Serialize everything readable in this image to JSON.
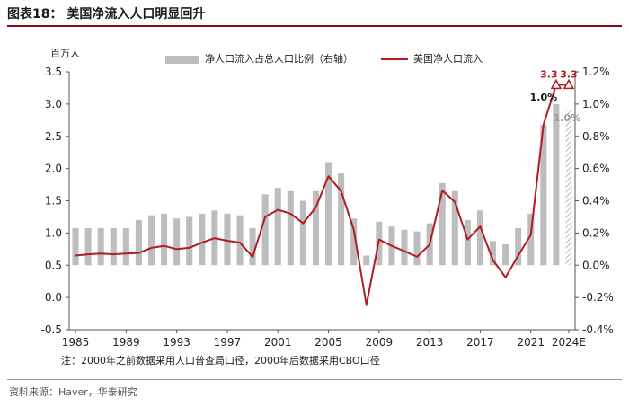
{
  "header": {
    "title": "图表18： 美国净流入人口明显回升",
    "unit": "百万人"
  },
  "footer": {
    "note": "注：2000年之前数据采用人口普查局口径，2000年后数据采用CBO口径",
    "source": "资料来源：Haver，华泰研究"
  },
  "colors": {
    "bar": "#bdbdbd",
    "line": "#b01c22",
    "annotation": "#b01c22",
    "grey_label": "#9e9e9e"
  },
  "chart_data": {
    "type": "bar+line",
    "x": [
      1985,
      1986,
      1987,
      1988,
      1989,
      1990,
      1991,
      1992,
      1993,
      1994,
      1995,
      1996,
      1997,
      1998,
      1999,
      2000,
      2001,
      2002,
      2003,
      2004,
      2005,
      2006,
      2007,
      2008,
      2009,
      2010,
      2011,
      2012,
      2013,
      2014,
      2015,
      2016,
      2017,
      2018,
      2019,
      2020,
      2021,
      2022,
      2023,
      "2024E"
    ],
    "x_tick_labels": [
      "1985",
      "1989",
      "1993",
      "1997",
      "2001",
      "2005",
      "2009",
      "2013",
      "2017",
      "2021",
      "2024E"
    ],
    "x_tick_years": [
      1985,
      1989,
      1993,
      1997,
      2001,
      2005,
      2009,
      2013,
      2017,
      2021,
      2024
    ],
    "series": [
      {
        "name": "净人口流入占总人口比例（右轴）",
        "type": "bar",
        "axis": "right",
        "values": [
          0.23,
          0.23,
          0.23,
          0.23,
          0.23,
          0.28,
          0.31,
          0.32,
          0.29,
          0.3,
          0.32,
          0.34,
          0.32,
          0.31,
          0.23,
          0.44,
          0.48,
          0.46,
          0.4,
          0.46,
          0.64,
          0.57,
          0.29,
          0.06,
          0.27,
          0.24,
          0.22,
          0.21,
          0.26,
          0.51,
          0.46,
          0.28,
          0.34,
          0.15,
          0.13,
          0.23,
          0.32,
          0.87,
          1.0,
          0.96
        ],
        "hatched_index": 39
      },
      {
        "name": "美国净人口流入",
        "type": "line",
        "axis": "left",
        "values": [
          0.65,
          0.67,
          0.68,
          0.67,
          0.68,
          0.69,
          0.77,
          0.8,
          0.75,
          0.77,
          0.85,
          0.92,
          0.88,
          0.85,
          0.63,
          1.25,
          1.36,
          1.3,
          1.15,
          1.4,
          1.88,
          1.65,
          1.05,
          -0.12,
          0.9,
          0.8,
          0.72,
          0.63,
          0.82,
          1.66,
          1.48,
          0.9,
          1.1,
          0.58,
          0.31,
          0.65,
          0.97,
          2.68,
          3.3,
          3.3
        ]
      }
    ],
    "annotations": [
      {
        "text": "3.3",
        "x": 2023,
        "y": 3.3,
        "marker": "triangle",
        "color": "#b01c22"
      },
      {
        "text": "3.3",
        "x": 2024,
        "y": 3.3,
        "marker": "triangle",
        "color": "#b01c22"
      },
      {
        "text": "1.0%",
        "x": 2023,
        "y_right": 1.0,
        "color": "#111111"
      },
      {
        "text": "1.0%",
        "x": 2024,
        "y_right": 0.96,
        "color": "#9e9e9e"
      }
    ],
    "ylim_left": [
      -0.5,
      3.5
    ],
    "yticks_left": [
      "3.5",
      "3.0",
      "2.5",
      "2.0",
      "1.5",
      "1.0",
      "0.5",
      "0.0",
      "-0.5"
    ],
    "yticks_left_values": [
      3.5,
      3.0,
      2.5,
      2.0,
      1.5,
      1.0,
      0.5,
      0.0,
      -0.5
    ],
    "ylim_right": [
      -0.4,
      1.2
    ],
    "yticks_right": [
      "1.2%",
      "1.0%",
      "0.8%",
      "0.6%",
      "0.4%",
      "0.2%",
      "0.0%",
      "-0.2%",
      "-0.4%"
    ],
    "yticks_right_values": [
      1.2,
      1.0,
      0.8,
      0.6,
      0.4,
      0.2,
      0.0,
      -0.2,
      -0.4
    ],
    "legend_position": "top",
    "grid": false
  }
}
